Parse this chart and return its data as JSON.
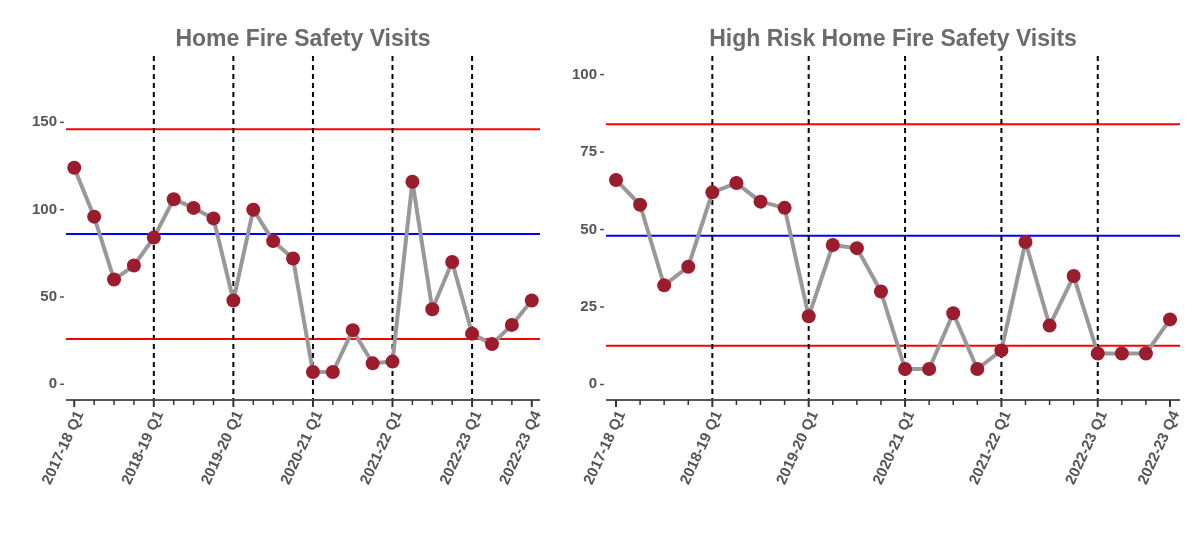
{
  "chart_data": [
    {
      "type": "line",
      "title": "Home Fire Safety Visits",
      "marker": "circle",
      "line_style": "solid",
      "grid": false,
      "categories": [
        "2017-18 Q1",
        null,
        null,
        null,
        "2018-19 Q1",
        null,
        null,
        null,
        "2019-20 Q1",
        null,
        null,
        null,
        "2020-21 Q1",
        null,
        null,
        null,
        "2021-22 Q1",
        null,
        null,
        null,
        "2022-23 Q1",
        null,
        null,
        "2022-23 Q4"
      ],
      "series": [
        {
          "color": "#999999",
          "colors": [
            "#9b1c2c",
            "#9b1c2c",
            "#9b1c2c",
            "#9b1c2c",
            "#9b1c2c",
            "#9b1c2c",
            "#9b1c2c",
            "#9b1c2c",
            "#9b1c2c",
            "#9b1c2c",
            "#9b1c2c",
            "#9b1c2c",
            "#9b1c2c",
            "#9b1c2c",
            "#9b1c2c",
            "#9b1c2c",
            "#9b1c2c",
            "#9b1c2c",
            "#9b1c2c",
            "#9b1c2c",
            "#9b1c2c",
            "#9b1c2c",
            "#9b1c2c",
            "#9b1c2c"
          ],
          "values": [
            124,
            96,
            60,
            68,
            84,
            106,
            101,
            95,
            48,
            100,
            82,
            72,
            7,
            7,
            31,
            12,
            13,
            116,
            43,
            70,
            29,
            23,
            34,
            48
          ]
        }
      ],
      "ylim": [
        -9,
        188
      ],
      "yticks": [
        0,
        50,
        100,
        150
      ],
      "ref_lines": [
        {
          "axis": "y",
          "value": 146,
          "color": "#ff0000",
          "line_style": "solid"
        },
        {
          "axis": "y",
          "value": 86,
          "color": "#0000ff",
          "line_style": "solid"
        },
        {
          "axis": "y",
          "value": 26,
          "color": "#ff0000",
          "line_style": "solid"
        },
        {
          "axis": "x",
          "value": "2018-19 Q1",
          "color": "#000000",
          "line_style": "dashed"
        },
        {
          "axis": "x",
          "value": "2019-20 Q1",
          "color": "#000000",
          "line_style": "dashed"
        },
        {
          "axis": "x",
          "value": "2020-21 Q1",
          "color": "#000000",
          "line_style": "dashed"
        },
        {
          "axis": "x",
          "value": "2021-22 Q1",
          "color": "#000000",
          "line_style": "dashed"
        },
        {
          "axis": "x",
          "value": "2022-23 Q1",
          "color": "#000000",
          "line_style": "dashed"
        }
      ]
    },
    {
      "type": "line",
      "title": "High Risk Home Fire Safety Visits",
      "marker": "circle",
      "line_style": "solid",
      "grid": false,
      "categories": [
        "2017-18 Q1",
        null,
        null,
        null,
        "2018-19 Q1",
        null,
        null,
        null,
        "2019-20 Q1",
        null,
        null,
        null,
        "2020-21 Q1",
        null,
        null,
        null,
        "2021-22 Q1",
        null,
        null,
        null,
        "2022-23 Q1",
        null,
        null,
        "2022-23 Q4"
      ],
      "series": [
        {
          "color": "#999999",
          "colors": [
            "#9b1c2c",
            "#9b1c2c",
            "#9b1c2c",
            "#9b1c2c",
            "#9b1c2c",
            "#9b1c2c",
            "#9b1c2c",
            "#9b1c2c",
            "#9b1c2c",
            "#9b1c2c",
            "#9b1c2c",
            "#9b1c2c",
            "#9b1c2c",
            "#9b1c2c",
            "#9b1c2c",
            "#9b1c2c",
            "#9b1c2c",
            "#9b1c2c",
            "#9b1c2c",
            "#9b1c2c",
            "#9b1c2c",
            "#9b1c2c",
            "#9b1c2c",
            "#9b1c2c"
          ],
          "values": [
            66,
            58,
            32,
            38,
            62,
            65,
            59,
            57,
            22,
            45,
            44,
            30,
            5,
            5,
            23,
            5,
            11,
            46,
            19,
            35,
            10,
            10,
            10,
            21
          ]
        }
      ],
      "ylim": [
        -5,
        106
      ],
      "yticks": [
        0,
        25,
        50,
        75,
        100
      ],
      "ref_lines": [
        {
          "axis": "y",
          "value": 84,
          "color": "#ff0000",
          "line_style": "solid"
        },
        {
          "axis": "y",
          "value": 48,
          "color": "#0000ff",
          "line_style": "solid"
        },
        {
          "axis": "y",
          "value": 12.5,
          "color": "#ff0000",
          "line_style": "solid"
        },
        {
          "axis": "x",
          "value": "2018-19 Q1",
          "color": "#000000",
          "line_style": "dashed"
        },
        {
          "axis": "x",
          "value": "2019-20 Q1",
          "color": "#000000",
          "line_style": "dashed"
        },
        {
          "axis": "x",
          "value": "2020-21 Q1",
          "color": "#000000",
          "line_style": "dashed"
        },
        {
          "axis": "x",
          "value": "2021-22 Q1",
          "color": "#000000",
          "line_style": "dashed"
        },
        {
          "axis": "x",
          "value": "2022-23 Q1",
          "color": "#000000",
          "line_style": "dashed"
        }
      ]
    }
  ]
}
